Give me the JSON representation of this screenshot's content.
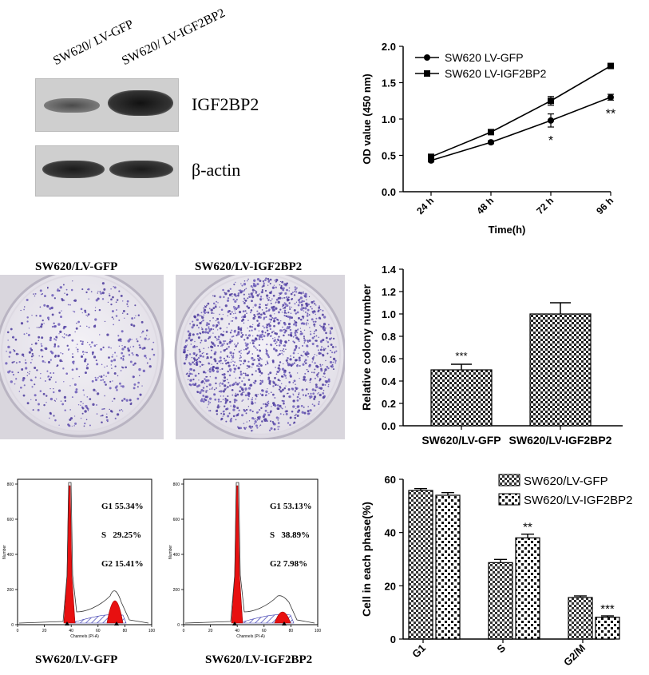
{
  "western_blot": {
    "lanes": [
      "SW620/ LV-GFP",
      "SW620/ LV-IGF2BP2"
    ],
    "proteins": [
      "IGF2BP2",
      "β-actin"
    ]
  },
  "colony_assay": {
    "labels": [
      "SW620/LV-GFP",
      "SW620/LV-IGF2BP2"
    ]
  },
  "flow_cytometry": {
    "x_label": "Channels (PI-A)",
    "y_label": "Number",
    "x_ticks": [
      "0",
      "20",
      "40",
      "60",
      "80",
      "100"
    ],
    "panels": [
      {
        "label": "SW620/LV-GFP",
        "stats": [
          {
            "k": "G1",
            "v": "55.34%"
          },
          {
            "k": "S",
            "v": "29.25%"
          },
          {
            "k": "G2",
            "v": "15.41%"
          }
        ]
      },
      {
        "label": "SW620/LV-IGF2BP2",
        "stats": [
          {
            "k": "G1",
            "v": "53.13%"
          },
          {
            "k": "S",
            "v": "38.89%"
          },
          {
            "k": "G2",
            "v": "7.98%"
          }
        ]
      }
    ]
  },
  "chart_data": [
    {
      "type": "line",
      "x": [
        "24 h",
        "48 h",
        "72 h",
        "96 h"
      ],
      "xlabel": "Time(h)",
      "ylabel": "OD value (450 nm)",
      "ylim": [
        0,
        2.0
      ],
      "yticks": [
        "0.0",
        "0.5",
        "1.0",
        "1.5",
        "2.0"
      ],
      "legend_position": "top-left",
      "series": [
        {
          "name": "SW620 LV-GFP",
          "marker": "circle",
          "values": [
            0.43,
            0.68,
            0.98,
            1.3
          ],
          "errors": [
            0.02,
            0.02,
            0.09,
            0.04
          ]
        },
        {
          "name": "SW620 LV-IGF2BP2",
          "marker": "square",
          "values": [
            0.48,
            0.82,
            1.25,
            1.73
          ],
          "errors": [
            0.02,
            0.02,
            0.06,
            0.02
          ]
        }
      ],
      "annotations": [
        {
          "x": "72 h",
          "text": "*"
        },
        {
          "x": "96 h",
          "text": "**"
        }
      ]
    },
    {
      "type": "bar",
      "categories": [
        "SW620/LV-GFP",
        "SW620/LV-IGF2BP2"
      ],
      "values": [
        0.5,
        1.0
      ],
      "errors": [
        0.05,
        0.1
      ],
      "ylabel": "Relative colony number",
      "ylim": [
        0,
        1.4
      ],
      "yticks": [
        "0.0",
        "0.2",
        "0.4",
        "0.6",
        "0.8",
        "1.0",
        "1.2",
        "1.4"
      ],
      "annotations": [
        {
          "category": "SW620/LV-GFP",
          "text": "***"
        }
      ]
    },
    {
      "type": "bar",
      "categories": [
        "G1",
        "S",
        "G2/M"
      ],
      "ylabel": "Cell in each phase(%)",
      "ylim": [
        0,
        60
      ],
      "yticks": [
        "0",
        "20",
        "40",
        "60"
      ],
      "legend_position": "top-right",
      "series": [
        {
          "name": "SW620/LV-GFP",
          "values": [
            55.8,
            28.7,
            15.6
          ],
          "errors": [
            0.7,
            1.2,
            0.6
          ]
        },
        {
          "name": "SW620/LV-IGF2BP2",
          "values": [
            54.0,
            38.0,
            8.2
          ],
          "errors": [
            1.0,
            1.4,
            0.5
          ]
        }
      ],
      "annotations": [
        {
          "category": "S",
          "series": 1,
          "text": "**"
        },
        {
          "category": "G2/M",
          "series": 1,
          "text": "***"
        }
      ]
    }
  ]
}
